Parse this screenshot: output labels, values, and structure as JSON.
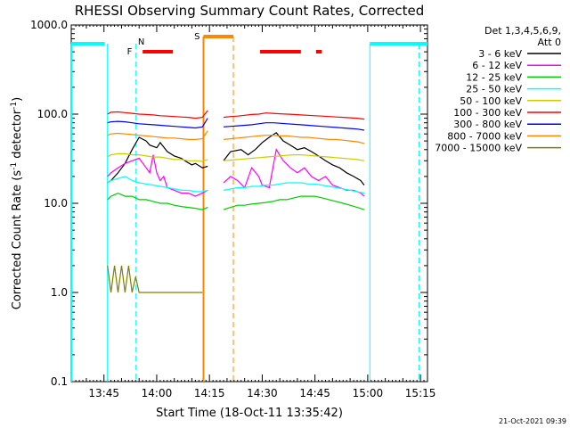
{
  "chart_data": {
    "type": "line",
    "title": "RHESSI Observing Summary Count Rates, Corrected",
    "xlabel": "Start Time (18-Oct-11 13:35:42)",
    "ylabel": "Corrected Count Rate (s⁻¹ detector⁻¹)",
    "ylabel_parts": [
      "Corrected Count Rate (s",
      "-1",
      " detector",
      "-1",
      ")"
    ],
    "yscale": "log",
    "ylim": [
      0.1,
      1000
    ],
    "xlim_minutes": [
      35.7,
      137
    ],
    "x_ticks": [
      {
        "label": "13:45",
        "min": 45
      },
      {
        "label": "14:00",
        "min": 60
      },
      {
        "label": "14:15",
        "min": 75
      },
      {
        "label": "14:30",
        "min": 90
      },
      {
        "label": "14:45",
        "min": 105
      },
      {
        "label": "15:00",
        "min": 120
      },
      {
        "label": "15:15",
        "min": 135
      }
    ],
    "y_ticks": [
      {
        "label": "0.1",
        "v": 0.1
      },
      {
        "label": "1.0",
        "v": 1
      },
      {
        "label": "10.0",
        "v": 10
      },
      {
        "label": "100.0",
        "v": 100
      },
      {
        "label": "1000.0",
        "v": 1000
      }
    ],
    "legend_header": [
      "Det 1,3,4,5,6,9,",
      "Att 0"
    ],
    "legend_position": "right",
    "series": [
      {
        "name": "3 - 6 keV",
        "color": "#000000",
        "x": [
          46,
          47,
          49,
          51,
          53,
          55,
          57,
          58,
          60,
          61,
          63,
          65,
          67,
          68,
          70,
          71,
          73,
          74.5,
          79,
          81,
          84,
          86,
          88,
          90,
          92,
          94,
          96,
          98,
          100,
          102,
          104,
          106,
          108,
          110,
          112,
          114,
          116,
          118,
          119
        ],
        "y": [
          17,
          18,
          22,
          28,
          40,
          55,
          50,
          45,
          42,
          48,
          38,
          34,
          32,
          30,
          27,
          28,
          25,
          26,
          30,
          38,
          40,
          35,
          40,
          48,
          55,
          62,
          50,
          45,
          40,
          42,
          38,
          34,
          30,
          27,
          25,
          22,
          20,
          18,
          16
        ]
      },
      {
        "name": "6 - 12 keV",
        "color": "#ff00ff",
        "x": [
          46,
          47,
          49,
          51,
          53,
          55,
          57,
          58,
          59,
          60,
          61,
          62,
          63,
          65,
          67,
          69,
          71,
          73,
          74.5,
          79,
          81,
          83,
          85,
          87,
          89,
          90,
          92,
          94,
          96,
          98,
          100,
          102,
          104,
          106,
          108,
          110,
          112,
          114,
          116,
          118,
          119
        ],
        "y": [
          20,
          22,
          25,
          28,
          30,
          32,
          25,
          22,
          35,
          22,
          18,
          20,
          15,
          14,
          13,
          13,
          12,
          13,
          14,
          17,
          20,
          18,
          15,
          25,
          20,
          16,
          15,
          40,
          30,
          25,
          22,
          25,
          20,
          18,
          20,
          16,
          15,
          14,
          14,
          13,
          12
        ]
      },
      {
        "name": "12 - 25 keV",
        "color": "#00cc00",
        "x": [
          46,
          47,
          49,
          51,
          53,
          55,
          57,
          59,
          61,
          63,
          65,
          67,
          69,
          71,
          73,
          74.5,
          79,
          81,
          83,
          85,
          87,
          89,
          91,
          93,
          95,
          97,
          99,
          101,
          103,
          105,
          107,
          109,
          111,
          113,
          115,
          117,
          119
        ],
        "y": [
          11,
          12,
          13,
          12,
          12,
          11,
          11,
          10.5,
          10,
          10,
          9.5,
          9.2,
          9,
          8.8,
          8.5,
          9,
          8.5,
          9,
          9.5,
          9.5,
          9.8,
          10,
          10.2,
          10.5,
          11,
          11,
          11.5,
          12,
          12,
          12,
          11.5,
          11,
          10.5,
          10,
          9.5,
          9,
          8.5
        ]
      },
      {
        "name": "25 - 50 keV",
        "color": "#00ffff",
        "x": [
          46,
          47,
          49,
          51,
          53,
          55,
          57,
          59,
          61,
          63,
          65,
          67,
          69,
          71,
          73,
          74.5,
          79,
          81,
          83,
          85,
          87,
          89,
          91,
          93,
          95,
          97,
          99,
          101,
          103,
          105,
          107,
          109,
          111,
          113,
          115,
          117,
          119
        ],
        "y": [
          17,
          18,
          19,
          20,
          18,
          17,
          16.5,
          16,
          15.5,
          15,
          14.5,
          14,
          14,
          13.5,
          13.5,
          14,
          14,
          14.5,
          15,
          15,
          15.5,
          15.5,
          16,
          16,
          16.5,
          17,
          17,
          17,
          16.5,
          16.5,
          16,
          15.5,
          15,
          14.5,
          14,
          13.5,
          13
        ]
      },
      {
        "name": "50 - 100 keV",
        "color": "#cccc00",
        "x": [
          46,
          47,
          49,
          51,
          53,
          55,
          57,
          59,
          61,
          63,
          65,
          67,
          69,
          71,
          73,
          74.5,
          79,
          81,
          83,
          85,
          87,
          89,
          91,
          93,
          95,
          97,
          99,
          101,
          103,
          105,
          107,
          109,
          111,
          113,
          115,
          117,
          119
        ],
        "y": [
          33,
          35,
          36,
          36,
          35,
          35,
          34,
          33,
          33,
          32,
          31,
          31,
          30,
          30,
          29.5,
          31,
          30,
          30.5,
          31,
          31.5,
          32,
          32.5,
          33,
          33.5,
          34,
          34.5,
          35,
          35,
          34.5,
          34,
          33.5,
          33,
          32.5,
          32,
          31.5,
          31,
          30
        ]
      },
      {
        "name": "100 - 300 keV",
        "color": "#ff0000",
        "x": [
          46,
          47,
          49,
          51,
          53,
          55,
          57,
          59,
          61,
          63,
          65,
          67,
          69,
          71,
          73,
          74.5,
          79,
          81,
          83,
          85,
          87,
          89,
          91,
          93,
          95,
          97,
          99,
          101,
          103,
          105,
          107,
          109,
          111,
          113,
          115,
          117,
          119
        ],
        "y": [
          100,
          105,
          106,
          104,
          102,
          100,
          99,
          98,
          96,
          95,
          94,
          93,
          92,
          90,
          92,
          110,
          92,
          94,
          95,
          97,
          99,
          100,
          103,
          102,
          101,
          100,
          99,
          98,
          97,
          96,
          95,
          94,
          93,
          92,
          91,
          90,
          88
        ]
      },
      {
        "name": "300 - 800 keV",
        "color": "#0000ff",
        "x": [
          46,
          47,
          49,
          51,
          53,
          55,
          57,
          59,
          61,
          63,
          65,
          67,
          69,
          71,
          73,
          74.5,
          79,
          81,
          83,
          85,
          87,
          89,
          91,
          93,
          95,
          97,
          99,
          101,
          103,
          105,
          107,
          109,
          111,
          113,
          115,
          117,
          119
        ],
        "y": [
          80,
          82,
          83,
          82,
          80,
          78,
          77,
          76,
          75,
          74,
          73,
          72,
          71,
          70,
          72,
          90,
          72,
          73,
          74,
          75,
          76,
          78,
          80,
          80,
          79,
          78,
          77,
          76,
          75,
          74,
          73,
          72,
          71,
          70,
          69,
          68,
          66
        ]
      },
      {
        "name": "800 - 7000 keV",
        "color": "#ff8800",
        "x": [
          46,
          47,
          49,
          51,
          53,
          55,
          57,
          59,
          61,
          63,
          65,
          67,
          69,
          71,
          73,
          74.5,
          79,
          81,
          83,
          85,
          87,
          89,
          91,
          93,
          95,
          97,
          99,
          101,
          103,
          105,
          107,
          109,
          111,
          113,
          115,
          117,
          119
        ],
        "y": [
          58,
          60,
          61,
          60,
          59,
          58,
          57,
          56,
          55,
          54,
          54,
          53,
          52,
          52,
          53,
          65,
          52,
          53,
          54,
          55,
          56,
          57,
          58,
          58,
          57,
          57,
          56,
          55,
          55,
          54,
          53,
          52,
          52,
          51,
          50,
          49,
          47
        ]
      },
      {
        "name": "7000 - 15000 keV",
        "color": "#808000",
        "x": [
          46,
          47,
          48,
          49,
          50,
          51,
          52,
          53,
          54,
          55,
          56,
          57,
          58,
          59,
          60,
          61,
          62,
          63,
          64,
          65,
          66,
          67,
          68,
          69,
          70,
          71,
          72,
          73
        ],
        "y": [
          2,
          1,
          2,
          1,
          2,
          1,
          2,
          1,
          1.5,
          1,
          1,
          1,
          1,
          1,
          1,
          1,
          1,
          1,
          1,
          1,
          1,
          1,
          1,
          1,
          1,
          1,
          1,
          1
        ]
      }
    ],
    "annotations": {
      "N_label": "N",
      "S_label": "S",
      "F_label": "F"
    },
    "footer_date": "21-Oct-2021 09:39"
  }
}
